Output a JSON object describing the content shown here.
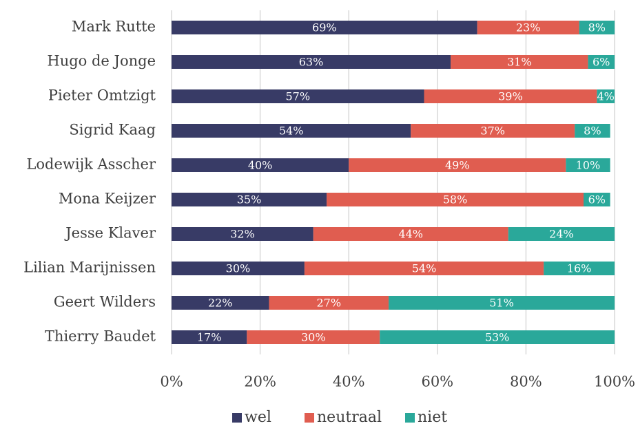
{
  "chart_data": {
    "type": "stacked-bar-horizontal",
    "categories": [
      "Mark Rutte",
      "Hugo de Jonge",
      "Pieter Omtzigt",
      "Sigrid Kaag",
      "Lodewijk Asscher",
      "Mona Keijzer",
      "Jesse Klaver",
      "Lilian Marijnissen",
      "Geert Wilders",
      "Thierry Baudet"
    ],
    "series": [
      {
        "name": "wel",
        "color": "#383b66",
        "values": [
          69,
          63,
          57,
          54,
          40,
          35,
          32,
          30,
          22,
          17
        ],
        "value_labels": [
          "69%",
          "63%",
          "57%",
          "54%",
          "40%",
          "35%",
          "32%",
          "30%",
          "22%",
          "17%"
        ]
      },
      {
        "name": "neutraal",
        "color": "#e05d50",
        "values": [
          23,
          31,
          39,
          37,
          49,
          58,
          44,
          54,
          27,
          30
        ],
        "value_labels": [
          "23%",
          "31%",
          "39%",
          "37%",
          "49%",
          "58%",
          "44%",
          "54%",
          "27%",
          "30%"
        ]
      },
      {
        "name": "niet",
        "color": "#2aa89a",
        "values": [
          8,
          6,
          4,
          8,
          10,
          6,
          24,
          16,
          51,
          53
        ],
        "value_labels": [
          "8%",
          "6%",
          "4%",
          "8%",
          "10%",
          "6%",
          "24%",
          "16%",
          "51%",
          "53%"
        ]
      }
    ],
    "xlim": [
      0,
      100
    ],
    "xticks": [
      {
        "value": 0,
        "label": "0%"
      },
      {
        "value": 20,
        "label": "20%"
      },
      {
        "value": 40,
        "label": "40%"
      },
      {
        "value": 60,
        "label": "60%"
      },
      {
        "value": 80,
        "label": "80%"
      },
      {
        "value": 100,
        "label": "100%"
      }
    ],
    "grid": true,
    "legend": "bottom"
  }
}
